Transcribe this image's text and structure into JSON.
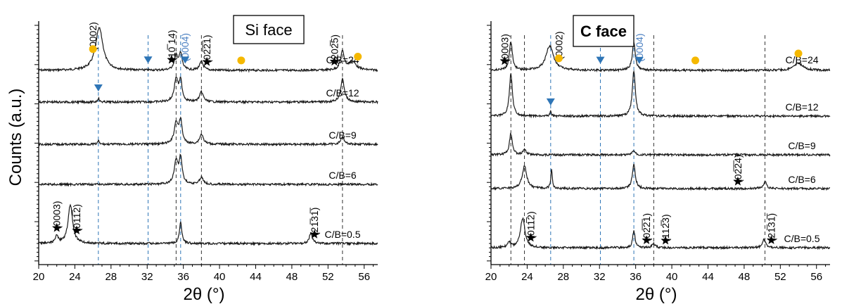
{
  "figure": {
    "ylabel": "Counts (a.u.)",
    "colors": {
      "trace": "#1a1a1a",
      "blue_marker": "#2e75b6",
      "orange_marker": "#f5b800",
      "blue_text": "#4a7fc1",
      "axis": "#000000"
    }
  },
  "chart_data": [
    {
      "type": "line",
      "title": "Si face",
      "xlabel": "2θ (°)",
      "ylabel": "Counts (a.u.)",
      "xlim": [
        20,
        57.5
      ],
      "xticks": [
        20,
        24,
        28,
        32,
        36,
        40,
        44,
        48,
        52,
        56
      ],
      "yscale": "log",
      "grid": false,
      "series": [
        {
          "name": "C/B=24",
          "baseline": 100,
          "peaks": [
            [
              26.7,
              60,
              0.5
            ],
            [
              35.2,
              20,
              0.25
            ],
            [
              35.7,
              22,
              0.2
            ],
            [
              38.0,
              12,
              0.25
            ],
            [
              53.6,
              26,
              0.25
            ],
            [
              54.7,
              12,
              0.5
            ]
          ]
        },
        {
          "name": "C/B=12",
          "baseline": 145,
          "peaks": [
            [
              26.6,
              6,
              0.1
            ],
            [
              35.2,
              32,
              0.25
            ],
            [
              35.7,
              28,
              0.2
            ],
            [
              38.0,
              14,
              0.25
            ],
            [
              53.6,
              32,
              0.25
            ]
          ]
        },
        {
          "name": "C/B=9",
          "baseline": 205,
          "peaks": [
            [
              26.6,
              5,
              0.1
            ],
            [
              35.2,
              30,
              0.25
            ],
            [
              35.7,
              32,
              0.2
            ],
            [
              38.0,
              14,
              0.25
            ],
            [
              53.6,
              10,
              0.25
            ]
          ]
        },
        {
          "name": "C/B=6",
          "baseline": 262,
          "peaks": [
            [
              35.2,
              32,
              0.25
            ],
            [
              35.7,
              36,
              0.2
            ],
            [
              38.0,
              10,
              0.25
            ]
          ]
        },
        {
          "name": "C/B=0.5",
          "baseline": 346,
          "peaks": [
            [
              22.0,
              10,
              0.2
            ],
            [
              23.5,
              55,
              0.3
            ],
            [
              35.7,
              32,
              0.15
            ],
            [
              50.1,
              15,
              0.2
            ]
          ]
        }
      ],
      "annotations": [
        {
          "text": "(0002)",
          "x": 26.0,
          "series": "C/B=24",
          "marker": "orange-circle"
        },
        {
          "text": "(10̅ 14)",
          "x": 34.7,
          "series": "C/B=24",
          "marker": "star"
        },
        {
          "text": "(0004)",
          "x": 36.2,
          "series": "C/B=24",
          "marker": "blue-triangle"
        },
        {
          "text": "(02̅2̅1)",
          "x": 38.6,
          "series": "C/B=24",
          "marker": "star"
        },
        {
          "text": "(202̅5)",
          "x": 52.7,
          "series": "C/B=24",
          "marker": "star"
        },
        {
          "text": "(0003)",
          "x": 22.0,
          "series": "C/B=0.5",
          "marker": "star"
        },
        {
          "text": "(011̅2)",
          "x": 24.2,
          "series": "C/B=0.5",
          "marker": "star"
        },
        {
          "text": "(21̅31̅)",
          "x": 50.5,
          "series": "C/B=0.5",
          "marker": "star"
        }
      ],
      "dashed_lines": [
        {
          "x": 26.6,
          "color": "blue"
        },
        {
          "x": 32.1,
          "color": "blue"
        },
        {
          "x": 35.7,
          "color": "blue"
        },
        {
          "x": 35.2,
          "color": "black"
        },
        {
          "x": 38.0,
          "color": "black"
        },
        {
          "x": 53.6,
          "color": "black"
        }
      ],
      "extra_markers": [
        {
          "x": 32.1,
          "series": "C/B=24",
          "marker": "blue-triangle"
        },
        {
          "x": 42.4,
          "series": "C/B=24",
          "marker": "orange-circle"
        },
        {
          "x": 55.3,
          "series": "C/B=24",
          "marker": "orange-circle"
        },
        {
          "x": 26.6,
          "series": "C/B=12",
          "marker": "blue-triangle"
        }
      ]
    },
    {
      "type": "line",
      "title": "C face",
      "xlabel": "2θ (°)",
      "ylabel": "",
      "xlim": [
        20,
        57.5
      ],
      "xticks": [
        20,
        24,
        28,
        32,
        36,
        40,
        44,
        48,
        52,
        56
      ],
      "yscale": "log",
      "grid": false,
      "series": [
        {
          "name": "C/B=24",
          "baseline": 100,
          "peaks": [
            [
              22.2,
              40,
              0.2
            ],
            [
              26.5,
              35,
              0.5
            ],
            [
              35.8,
              40,
              0.2
            ],
            [
              54.0,
              10,
              0.6
            ]
          ]
        },
        {
          "name": "C/B=12",
          "baseline": 165,
          "peaks": [
            [
              22.2,
              60,
              0.2
            ],
            [
              26.6,
              6,
              0.1
            ],
            [
              35.8,
              65,
              0.2
            ]
          ]
        },
        {
          "name": "C/B=9",
          "baseline": 220,
          "peaks": [
            [
              22.2,
              30,
              0.2
            ],
            [
              23.7,
              8,
              0.2
            ],
            [
              35.8,
              6,
              0.2
            ]
          ]
        },
        {
          "name": "C/B=6",
          "baseline": 268,
          "peaks": [
            [
              23.7,
              32,
              0.3
            ],
            [
              26.7,
              28,
              0.1
            ],
            [
              35.8,
              34,
              0.2
            ],
            [
              50.3,
              10,
              0.2
            ]
          ]
        },
        {
          "name": "C/B=0.5",
          "baseline": 352,
          "peaks": [
            [
              22.0,
              8,
              0.2
            ],
            [
              23.5,
              42,
              0.3
            ],
            [
              35.8,
              25,
              0.15
            ],
            [
              38.0,
              6,
              0.2
            ],
            [
              50.2,
              12,
              0.2
            ]
          ]
        }
      ],
      "annotations": [
        {
          "text": "(0003)",
          "x": 21.5,
          "series": "C/B=24",
          "marker": "star"
        },
        {
          "text": "(0002)",
          "x": 27.5,
          "series": "C/B=24",
          "marker": "orange-circle"
        },
        {
          "text": "(0004)",
          "x": 36.4,
          "series": "C/B=24",
          "marker": "blue-triangle"
        },
        {
          "text": "(02̅2̅4)",
          "x": 47.3,
          "series": "C/B=6",
          "marker": "star"
        },
        {
          "text": "(011̅2)",
          "x": 24.4,
          "series": "C/B=0.5",
          "marker": "star"
        },
        {
          "text": "(02̅2̅1)",
          "x": 37.2,
          "series": "C/B=0.5",
          "marker": "star"
        },
        {
          "text": "(112̅3)",
          "x": 39.3,
          "series": "C/B=0.5",
          "marker": "star"
        },
        {
          "text": "(21̅31̅)",
          "x": 51.0,
          "series": "C/B=0.5",
          "marker": "star"
        }
      ],
      "dashed_lines": [
        {
          "x": 26.6,
          "color": "blue"
        },
        {
          "x": 32.1,
          "color": "blue"
        },
        {
          "x": 35.8,
          "color": "blue"
        },
        {
          "x": 22.2,
          "color": "black"
        },
        {
          "x": 23.7,
          "color": "black"
        },
        {
          "x": 38.0,
          "color": "black"
        },
        {
          "x": 50.3,
          "color": "black"
        }
      ],
      "extra_markers": [
        {
          "x": 32.1,
          "series": "C/B=24",
          "marker": "blue-triangle"
        },
        {
          "x": 42.6,
          "series": "C/B=24",
          "marker": "orange-circle"
        },
        {
          "x": 54.0,
          "series": "C/B=24",
          "marker": "orange-circle"
        },
        {
          "x": 26.6,
          "series": "C/B=12",
          "marker": "blue-triangle"
        }
      ]
    }
  ]
}
